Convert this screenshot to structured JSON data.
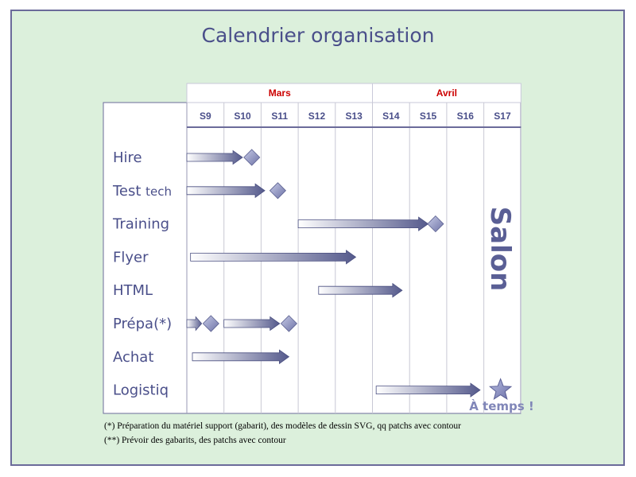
{
  "title": "Calendrier organisation",
  "months": [
    "Mars",
    "Avril"
  ],
  "weeks": [
    "S9",
    "S10",
    "S11",
    "S12",
    "S13",
    "S14",
    "S15",
    "S16",
    "S17"
  ],
  "tasks": [
    {
      "main": "Hire",
      "sub": ""
    },
    {
      "main": "Test ",
      "sub": "tech"
    },
    {
      "main": "Training",
      "sub": ""
    },
    {
      "main": "Flyer",
      "sub": ""
    },
    {
      "main": "HTML",
      "sub": ""
    },
    {
      "main": "Prépa(*)",
      "sub": ""
    },
    {
      "main": "Achat",
      "sub": ""
    },
    {
      "main": "Logistiq",
      "sub": ""
    }
  ],
  "salon_label": "Salon",
  "on_time_label": "À temps !",
  "footnotes": [
    "(*) Préparation du matériel support (gabarit), des modèles de dessin SVG, qq patchs avec contour",
    "(**) Prévoir des gabarits, des patchs avec contour"
  ],
  "colors": {
    "title": "#4a4f8a",
    "month_text": "#cc0000",
    "week_text": "#4a4f8a",
    "arrow": "#555a8c",
    "milestone": "#8a8fbf",
    "salon": "#5a5f95",
    "star": "#8086b8",
    "grid_frame": "#6b6b9a"
  },
  "chart_data": {
    "type": "gantt",
    "unit": "week",
    "bars": [
      {
        "task": "Hire",
        "start": 9.0,
        "end": 10.5,
        "milestones": [
          10.75
        ]
      },
      {
        "task": "Test tech",
        "start": 9.0,
        "end": 11.1,
        "milestones": [
          11.45
        ]
      },
      {
        "task": "Training",
        "start": 12.0,
        "end": 15.5,
        "milestones": [
          15.7
        ]
      },
      {
        "task": "Flyer",
        "start": 9.1,
        "end": 13.55,
        "milestones": []
      },
      {
        "task": "HTML",
        "start": 12.55,
        "end": 14.8,
        "milestones": []
      },
      {
        "task": "Prépa(*)",
        "start": 9.0,
        "end": 9.4,
        "milestones": [
          9.65
        ]
      },
      {
        "task": "Prépa(*)",
        "start": 10.0,
        "end": 11.5,
        "milestones": [
          11.75
        ]
      },
      {
        "task": "Achat",
        "start": 9.15,
        "end": 11.75,
        "milestones": []
      },
      {
        "task": "Logistiq",
        "start": 14.1,
        "end": 16.9,
        "milestones": []
      }
    ],
    "star_marker": {
      "task": "Logistiq",
      "week": 17.45
    }
  }
}
